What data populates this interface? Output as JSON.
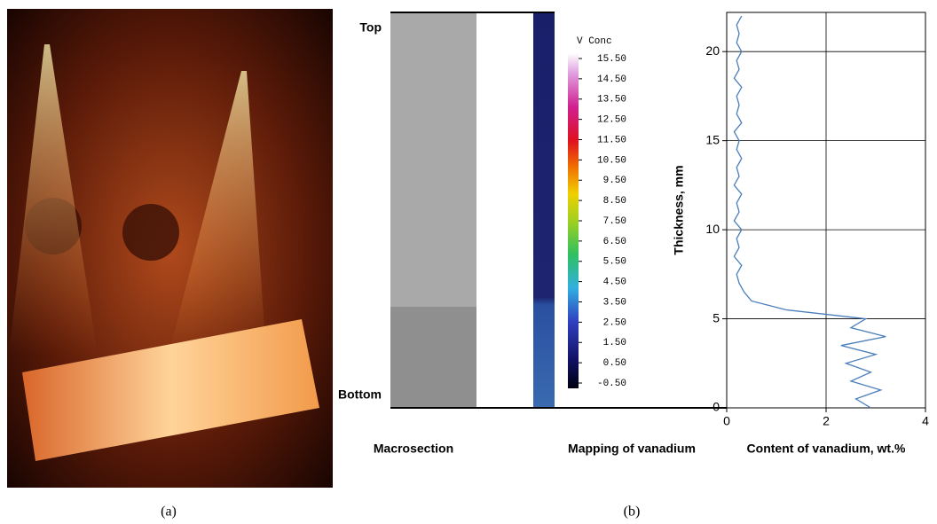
{
  "panel_labels": [
    "(a)",
    "(b)"
  ],
  "macrosection": {
    "top_label": "Top",
    "bottom_label": "Bottom",
    "caption": "Macrosection"
  },
  "mapping": {
    "caption": "Mapping of vanadium",
    "colorbar": {
      "title": "V Conc",
      "ticks": [
        {
          "value": 15.5,
          "label": "15.50"
        },
        {
          "value": 14.5,
          "label": "14.50"
        },
        {
          "value": 13.5,
          "label": "13.50"
        },
        {
          "value": 12.5,
          "label": "12.50"
        },
        {
          "value": 11.5,
          "label": "11.50"
        },
        {
          "value": 10.5,
          "label": "10.50"
        },
        {
          "value": 9.5,
          "label": "9.50"
        },
        {
          "value": 8.5,
          "label": "8.50"
        },
        {
          "value": 7.5,
          "label": "7.50"
        },
        {
          "value": 6.5,
          "label": "6.50"
        },
        {
          "value": 5.5,
          "label": "5.50"
        },
        {
          "value": 4.5,
          "label": "4.50"
        },
        {
          "value": 3.5,
          "label": "3.50"
        },
        {
          "value": 2.5,
          "label": "2.50"
        },
        {
          "value": 1.5,
          "label": "1.50"
        },
        {
          "value": 0.5,
          "label": "0.50"
        },
        {
          "value": -0.5,
          "label": "-0.50"
        }
      ]
    }
  },
  "chart_data": {
    "type": "line",
    "color": "#4a7ebb",
    "grid": true,
    "x_label": "Content of vanadium, wt.%",
    "y_label": "Thickness, mm",
    "xlim": [
      0,
      4
    ],
    "xticks": [
      0,
      2,
      4
    ],
    "ylim": [
      0,
      22.2
    ],
    "yticks": [
      0,
      5,
      10,
      15,
      20
    ],
    "x": [
      2.9,
      2.6,
      3.1,
      2.5,
      2.9,
      2.4,
      3.0,
      2.3,
      3.2,
      2.5,
      2.8,
      1.2,
      0.5,
      0.35,
      0.25,
      0.2,
      0.3,
      0.15,
      0.25,
      0.2,
      0.3,
      0.15,
      0.25,
      0.2,
      0.3,
      0.15,
      0.25,
      0.2,
      0.3,
      0.2,
      0.25,
      0.15,
      0.3,
      0.2,
      0.25,
      0.2,
      0.3,
      0.15,
      0.25,
      0.2,
      0.3,
      0.2,
      0.25,
      0.2,
      0.3
    ],
    "values": [
      0,
      0.5,
      1,
      1.5,
      2,
      2.5,
      3,
      3.5,
      4,
      4.5,
      5,
      5.5,
      6,
      6.5,
      7,
      7.5,
      8,
      8.5,
      9,
      9.5,
      10,
      10.5,
      11,
      11.5,
      12,
      12.5,
      13,
      13.5,
      14,
      14.5,
      15,
      15.5,
      16,
      16.5,
      17,
      17.5,
      18,
      18.5,
      19,
      19.5,
      20,
      20.5,
      21,
      21.5,
      22
    ]
  }
}
